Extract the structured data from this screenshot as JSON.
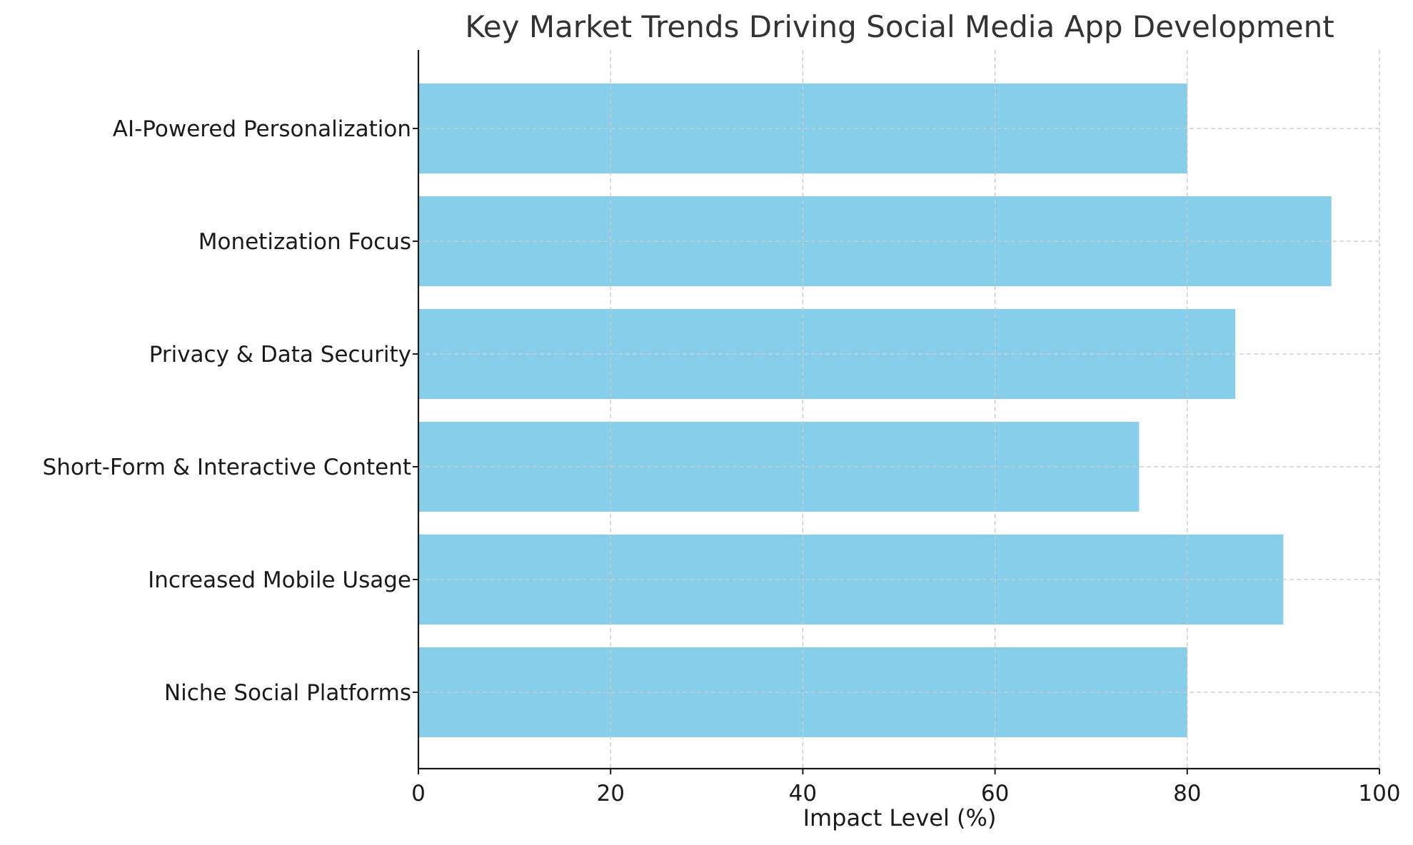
{
  "chart_data": {
    "type": "bar",
    "orientation": "horizontal",
    "title": "Key Market Trends Driving Social Media App Development",
    "xlabel": "Impact Level (%)",
    "ylabel": "",
    "xlim": [
      0,
      100
    ],
    "xticks": [
      0,
      20,
      40,
      60,
      80,
      100
    ],
    "grid": true,
    "categories": [
      "AI-Powered Personalization",
      "Monetization Focus",
      "Privacy & Data Security",
      "Short-Form & Interactive Content",
      "Increased Mobile Usage",
      "Niche Social Platforms"
    ],
    "values": [
      80,
      95,
      85,
      75,
      90,
      80
    ],
    "colors": {
      "bar": "#87CEEB",
      "axis": "#1a1a1a",
      "grid": "#c8c8c8",
      "title": "#333333",
      "text": "#1a1a1a"
    }
  }
}
